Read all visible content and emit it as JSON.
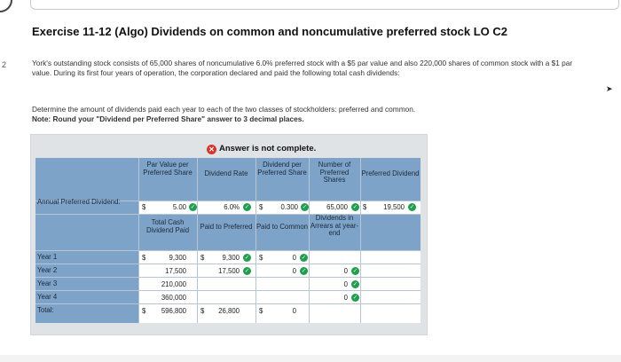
{
  "question_number": "2",
  "title": "Exercise 11-12 (Algo) Dividends on common and noncumulative preferred stock LO C2",
  "intro": "York's outstanding stock consists of 65,000 shares of noncumulative 6.0% preferred stock with a $5 par value and also 220,000 shares of common stock with a $1 par value. During its first four years of operation, the corporation declared and paid the following total cash dividends:",
  "instructions": "Determine the amount of dividends paid each year to each of the two classes of stockholders: preferred and common.",
  "note": "Note: Round your \"Dividend per Preferred Share\" answer to 3 decimal places.",
  "status": "Answer is not complete.",
  "status_icon": "x-circle-icon",
  "colors": {
    "header_blue": "#7ea3c9",
    "panel_gray": "#dfe3e6",
    "check_green": "#1e9f4d",
    "error_red": "#d9352b"
  },
  "top_headers": {
    "par_value": "Par Value per Preferred Share",
    "dividend_rate": "Dividend Rate",
    "dividend_per_share": "Dividend per Preferred Share",
    "number_shares": "Number of Preferred Shares",
    "preferred_dividend": "Preferred Dividend"
  },
  "annual_row": {
    "label": "Annual Preferred Dividend:",
    "par_value": "5.00",
    "rate": "6.0%",
    "per_share": "0.300",
    "shares": "65,000",
    "preferred_dividend": "19,500"
  },
  "sub_headers": {
    "total_cash": "Total Cash Dividend Paid",
    "paid_pref": "Paid to Preferred",
    "paid_common": "Paid to Common",
    "arrears": "Dividends in Arrears at year-end"
  },
  "rows": [
    {
      "label": "Year 1",
      "total": "9,300",
      "preferred": "9,300",
      "common": "0",
      "arrears": ""
    },
    {
      "label": "Year 2",
      "total": "17,500",
      "preferred": "17,500",
      "common": "0",
      "arrears": "0"
    },
    {
      "label": "Year 3",
      "total": "210,000",
      "preferred": "",
      "common": "",
      "arrears": "0"
    },
    {
      "label": "Year 4",
      "total": "360,000",
      "preferred": "",
      "common": "",
      "arrears": "0"
    },
    {
      "label": "Total:",
      "total": "596,800",
      "preferred": "26,800",
      "common": "0",
      "arrears": ""
    }
  ],
  "currency": "$"
}
